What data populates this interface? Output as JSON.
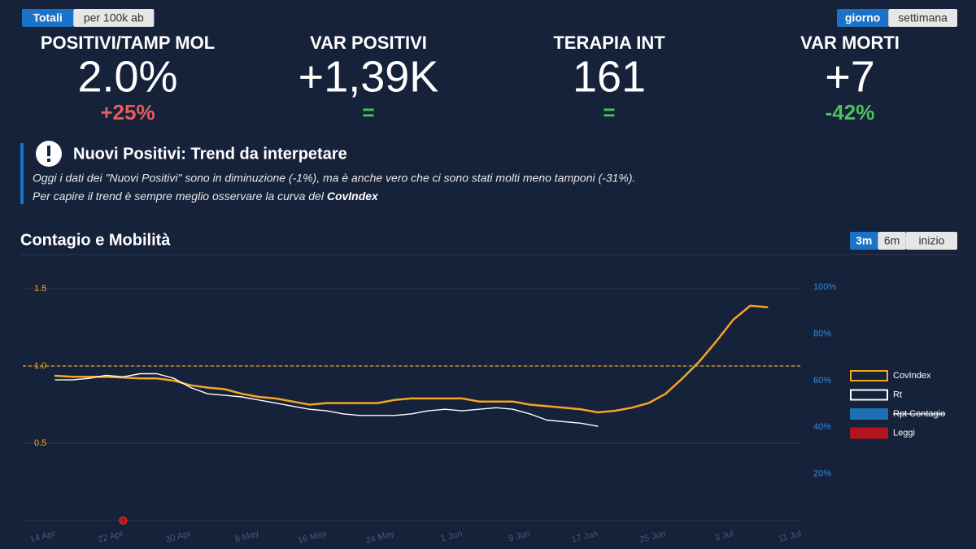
{
  "toggles_left": [
    {
      "label": "Totali",
      "active": true
    },
    {
      "label": "per 100k ab",
      "active": false
    }
  ],
  "toggles_right": [
    {
      "label": "giorno",
      "active": true
    },
    {
      "label": "settimana",
      "active": false
    }
  ],
  "kpis": [
    {
      "label": "POSITIVI/TAMP MOL",
      "value": "2.0%",
      "change": "+25%",
      "change_color": "#e55c5c"
    },
    {
      "label": "VAR POSITIVI",
      "value": "+1,39K",
      "change": "=",
      "change_color": "#4cc25a"
    },
    {
      "label": "TERAPIA INT",
      "value": "161",
      "change": "=",
      "change_color": "#4cc25a"
    },
    {
      "label": "VAR MORTI",
      "value": "+7",
      "change": "-42%",
      "change_color": "#4cc25a"
    }
  ],
  "notice": {
    "title": "Nuovi Positivi: Trend da interpetare",
    "line1": "Oggi i dati dei \"Nuovi Positivi\" sono in diminuzione (-1%), ma è anche vero che ci sono stati molti meno tamponi (-31%).",
    "line2": "Per capire il trend è sempre meglio osservare la curva del ",
    "line2_bold": "CovIndex"
  },
  "section": {
    "title": "Contagio e Mobilità",
    "ranges": [
      {
        "label": "3m",
        "active": true
      },
      {
        "label": "6m",
        "active": false
      },
      {
        "label": "inizio",
        "active": false
      }
    ]
  },
  "chart_data": {
    "type": "line",
    "categories": [
      "14 Apr",
      null,
      null,
      null,
      "22 Apr",
      null,
      null,
      null,
      "30 Apr",
      null,
      null,
      null,
      "8 May",
      null,
      null,
      null,
      "16 May",
      null,
      null,
      null,
      "24 May",
      null,
      null,
      null,
      "1 Jun",
      null,
      null,
      null,
      "9 Jun",
      null,
      null,
      null,
      "17 Jun",
      null,
      null,
      null,
      "25 Jun",
      null,
      null,
      null,
      "3 Jul",
      null,
      null,
      null,
      "11 Jul"
    ],
    "series": [
      {
        "name": "CovIndex",
        "color": "#f5a623",
        "values": [
          0.937,
          0.93,
          0.93,
          0.93,
          0.926,
          0.92,
          0.92,
          0.905,
          0.875,
          0.86,
          0.85,
          0.82,
          0.8,
          0.79,
          0.77,
          0.75,
          0.76,
          0.76,
          0.76,
          0.76,
          0.78,
          0.79,
          0.79,
          0.79,
          0.79,
          0.77,
          0.77,
          0.77,
          0.75,
          0.74,
          0.73,
          0.72,
          0.7,
          0.71,
          0.73,
          0.76,
          0.82,
          0.92,
          1.03,
          1.16,
          1.3,
          1.39,
          1.38,
          null,
          null
        ]
      },
      {
        "name": "Rt",
        "color": "#ffffff",
        "values": [
          0.91,
          0.91,
          0.92,
          0.94,
          0.93,
          0.95,
          0.95,
          0.92,
          0.86,
          0.82,
          0.81,
          0.8,
          0.78,
          0.76,
          0.74,
          0.72,
          0.71,
          0.69,
          0.68,
          0.68,
          0.68,
          0.69,
          0.71,
          0.72,
          0.71,
          0.72,
          0.73,
          0.72,
          0.69,
          0.65,
          0.64,
          0.63,
          0.61,
          null,
          null,
          null,
          null,
          null,
          null,
          null,
          null,
          null,
          null,
          null,
          null
        ]
      }
    ],
    "hidden_series": [
      {
        "name": "Rpt Contagio",
        "color": "#1f6fb5"
      }
    ],
    "events": {
      "name": "Leggi",
      "color": "#b3141e",
      "values": [
        null,
        null,
        null,
        null,
        0,
        null,
        null,
        null,
        null,
        null,
        null,
        null,
        null,
        null,
        null,
        null,
        null,
        null,
        null,
        null,
        null,
        null,
        null,
        null,
        null,
        null,
        null,
        null,
        null,
        null,
        null,
        null,
        null,
        null,
        null,
        null,
        null,
        null,
        null,
        null,
        null,
        null,
        null,
        null,
        null
      ]
    },
    "ylim": [
      0,
      1.6
    ],
    "yticks": [
      0.5,
      {
        "value": 1,
        "label": "1.0"
      },
      1.5
    ],
    "y2lim": [
      0,
      106
    ],
    "y2ticks": [
      {
        "value": 20,
        "label": "20%"
      },
      {
        "value": 40,
        "label": "40%"
      },
      {
        "value": 60,
        "label": "60%"
      },
      {
        "value": 80,
        "label": "80%"
      },
      {
        "value": 100,
        "label": "100%"
      }
    ],
    "reference_line": 1,
    "grid": true,
    "legend": "right"
  }
}
